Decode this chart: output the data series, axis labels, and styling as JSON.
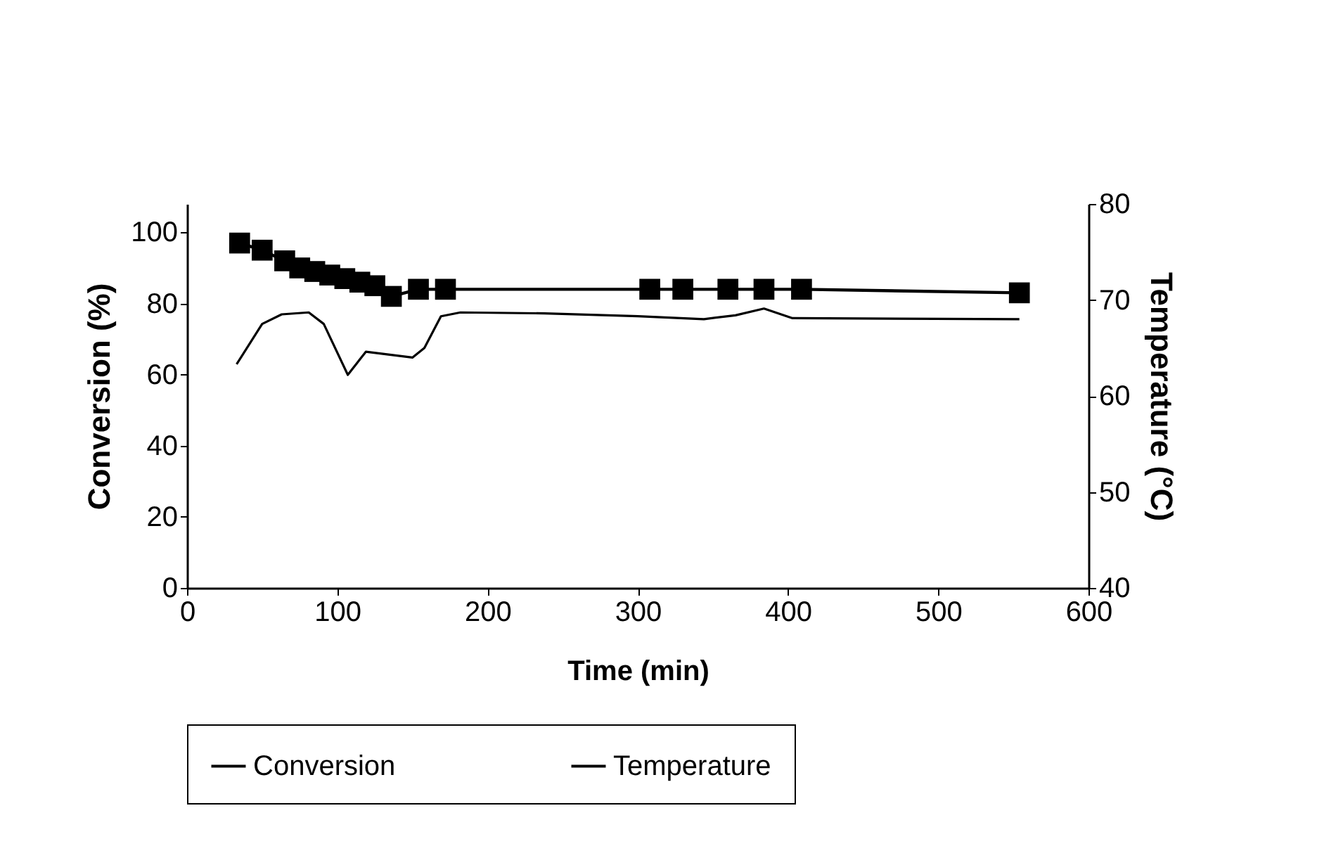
{
  "chart_data": {
    "type": "line",
    "xlabel": "Time (min)",
    "ylabel": "Conversion (%)",
    "y2label": "Temperature (°C)",
    "xlim": [
      0,
      600
    ],
    "xticks": [
      0,
      100,
      200,
      300,
      400,
      500,
      600
    ],
    "ylim": [
      0,
      108
    ],
    "yticks": [
      0,
      20,
      40,
      60,
      80,
      100
    ],
    "y2lim": [
      40,
      80
    ],
    "y2ticks": [
      40,
      50,
      60,
      70,
      80
    ],
    "legend": "bottom",
    "grid": false,
    "series": [
      {
        "name": "Conversion",
        "color": "#000000",
        "marker": "square",
        "x": [
          35,
          50,
          65,
          75,
          85,
          95,
          105,
          115,
          125,
          136,
          154,
          172,
          308,
          330,
          360,
          384,
          409,
          554
        ],
        "values": [
          97,
          95,
          92,
          90,
          89,
          88,
          87,
          86,
          85,
          82,
          84,
          84,
          84,
          84,
          84,
          84,
          84,
          83
        ]
      },
      {
        "name": "Temperature",
        "color": "#000000",
        "marker": "none",
        "axis": "y2",
        "x": [
          33,
          50,
          63,
          81,
          91,
          107,
          119,
          150,
          158,
          169,
          182,
          238,
          300,
          344,
          365,
          384,
          403,
          554
        ],
        "values": [
          63.3,
          67.5,
          68.5,
          68.7,
          67.5,
          62.2,
          64.6,
          64.0,
          65.0,
          68.3,
          68.7,
          68.6,
          68.3,
          68.0,
          68.4,
          69.1,
          68.1,
          68.0
        ]
      }
    ]
  }
}
